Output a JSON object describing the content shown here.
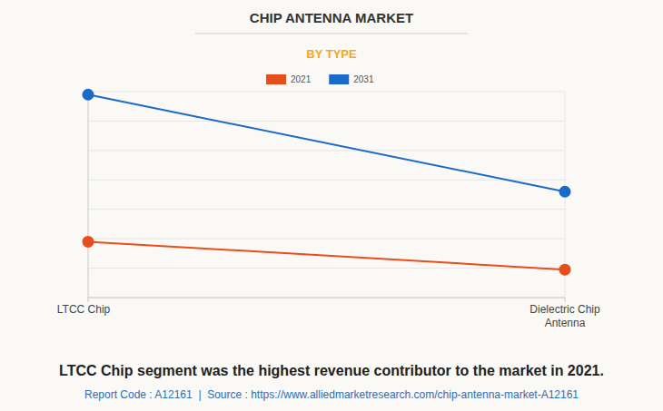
{
  "chart_data": {
    "type": "line",
    "title": "CHIP ANTENNA MARKET",
    "subtitle": "BY TYPE",
    "categories": [
      "LTCC Chip",
      "Dielectric Chip Antenna"
    ],
    "series": [
      {
        "name": "2021",
        "color": "#e84e1b",
        "marker": "circle",
        "values": [
          1.9,
          0.95
        ]
      },
      {
        "name": "2031",
        "color": "#1a6bc9",
        "marker": "circle",
        "values": [
          6.9,
          3.6
        ]
      }
    ],
    "ylim": [
      0,
      7
    ],
    "yticks": [
      0,
      1,
      2,
      3,
      4,
      5,
      6,
      7
    ],
    "grid": true,
    "tick_labels": false,
    "legend": "top",
    "annotations": [
      "LTCC Chip segment was the highest revenue contributor to the market in 2021.",
      "Report Code : A12161  |  Source : https://www.alliedmarketresearch.com/chip-antenna-market-A12161"
    ]
  }
}
